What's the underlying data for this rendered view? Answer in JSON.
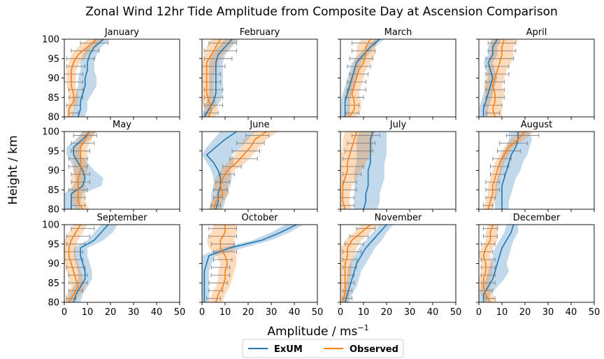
{
  "figure": {
    "title": "Zonal Wind 12hr Tide Amplitude from Composite Day at Ascension Comparison",
    "ylabel": "Height / km",
    "xlabel_main": "Amplitude / ms",
    "xlabel_exp": "−1",
    "legend": {
      "placement": "bottom-center",
      "entries": [
        "ExUM",
        "Observed"
      ]
    },
    "colors": {
      "exum": "#1f77b4",
      "observed": "#ff7f0e",
      "errorbar": "#808080"
    }
  },
  "chart_data": {
    "type": "line",
    "xlim": [
      0,
      50
    ],
    "ylim": [
      80,
      100
    ],
    "x_ticks": [
      0,
      10,
      20,
      30,
      40,
      50
    ],
    "y_ticks": [
      80,
      85,
      90,
      95,
      100
    ],
    "y": [
      80,
      82,
      84,
      86,
      88,
      90,
      92,
      94,
      96,
      98,
      100
    ],
    "panels": [
      {
        "title": "January",
        "exum": [
          6,
          7,
          7,
          8,
          9,
          9,
          10,
          10,
          11,
          13,
          17
        ],
        "exum_lo": [
          3,
          4,
          4,
          5,
          6,
          6,
          7,
          7,
          8,
          10,
          14
        ],
        "exum_hi": [
          9,
          10,
          10,
          12,
          14,
          14,
          13,
          13,
          14,
          16,
          20
        ],
        "obs": [
          2,
          2,
          4,
          4,
          3,
          3,
          3,
          4,
          6,
          10,
          14
        ],
        "obs_lo": [
          1,
          1,
          2,
          2,
          1,
          1,
          1,
          2,
          3,
          6,
          10
        ],
        "obs_hi": [
          4,
          4,
          6,
          6,
          5,
          5,
          5,
          7,
          10,
          14,
          17
        ],
        "err_y": [
          81,
          83,
          85,
          87,
          89,
          91,
          93,
          95,
          97,
          99
        ],
        "err_c": [
          4,
          4,
          5,
          5,
          4,
          4,
          5,
          7,
          9,
          13
        ],
        "err_h": [
          2,
          3,
          3,
          3,
          4,
          4,
          4,
          6,
          6,
          6
        ]
      },
      {
        "title": "February",
        "exum": [
          1,
          3,
          5,
          6,
          6,
          6,
          6,
          6,
          7,
          10,
          13
        ],
        "exum_lo": [
          0,
          1,
          2,
          3,
          3,
          3,
          3,
          3,
          4,
          7,
          10
        ],
        "exum_hi": [
          3,
          5,
          8,
          9,
          9,
          9,
          9,
          9,
          10,
          13,
          16
        ],
        "obs": [
          3,
          4,
          3,
          2,
          2,
          2,
          2,
          2,
          4,
          6,
          8
        ],
        "obs_lo": [
          1,
          1,
          0,
          0,
          0,
          0,
          0,
          0,
          1,
          2,
          4
        ],
        "obs_hi": [
          6,
          7,
          6,
          5,
          5,
          5,
          6,
          7,
          9,
          12,
          15
        ],
        "err_y": [
          81,
          83,
          85,
          87,
          89,
          91,
          93,
          95,
          97,
          99
        ],
        "err_c": [
          4,
          5,
          5,
          5,
          4,
          4,
          5,
          7,
          8,
          9
        ],
        "err_h": [
          3,
          4,
          4,
          4,
          4,
          4,
          5,
          6,
          7,
          6
        ]
      },
      {
        "title": "March",
        "exum": [
          2,
          2,
          2,
          3,
          4,
          5,
          6,
          7,
          10,
          13,
          17
        ],
        "exum_lo": [
          0,
          0,
          0,
          1,
          2,
          3,
          4,
          5,
          8,
          11,
          15
        ],
        "exum_hi": [
          4,
          4,
          4,
          5,
          6,
          7,
          8,
          9,
          12,
          15,
          19
        ],
        "obs": [
          4,
          6,
          6,
          5,
          6,
          7,
          8,
          10,
          11,
          11,
          13
        ],
        "obs_lo": [
          1,
          3,
          3,
          2,
          3,
          4,
          5,
          6,
          7,
          7,
          9
        ],
        "obs_hi": [
          7,
          9,
          9,
          8,
          9,
          10,
          11,
          13,
          15,
          15,
          17
        ],
        "err_y": [
          81,
          83,
          85,
          87,
          89,
          91,
          93,
          95,
          97,
          99
        ],
        "err_c": [
          5,
          5,
          6,
          7,
          7,
          8,
          8,
          9,
          10,
          10
        ],
        "err_h": [
          3,
          3,
          4,
          4,
          4,
          4,
          5,
          5,
          5,
          5
        ]
      },
      {
        "title": "April",
        "exum": [
          2,
          2,
          3,
          4,
          5,
          6,
          5,
          4,
          6,
          6,
          8
        ],
        "exum_lo": [
          0,
          0,
          1,
          2,
          3,
          4,
          3,
          2,
          4,
          4,
          6
        ],
        "exum_hi": [
          4,
          4,
          5,
          6,
          7,
          8,
          7,
          6,
          8,
          8,
          10
        ],
        "obs": [
          7,
          6,
          7,
          7,
          6,
          7,
          8,
          9,
          10,
          10,
          11
        ],
        "obs_lo": [
          3,
          3,
          3,
          3,
          2,
          3,
          4,
          4,
          5,
          5,
          5
        ],
        "obs_hi": [
          10,
          10,
          10,
          11,
          10,
          11,
          12,
          14,
          15,
          15,
          17
        ],
        "err_y": [
          81,
          83,
          85,
          87,
          89,
          91,
          93,
          95,
          97,
          99
        ],
        "err_c": [
          6,
          6,
          7,
          7,
          7,
          8,
          8,
          9,
          10,
          10
        ],
        "err_h": [
          3,
          4,
          4,
          4,
          4,
          5,
          5,
          6,
          6,
          6
        ]
      },
      {
        "title": "May",
        "exum": [
          3,
          3,
          3,
          8,
          9,
          8,
          6,
          4,
          4,
          8,
          11
        ],
        "exum_lo": [
          0,
          0,
          0,
          4,
          5,
          4,
          3,
          1,
          1,
          5,
          8
        ],
        "exum_hi": [
          7,
          7,
          8,
          16,
          17,
          13,
          10,
          7,
          7,
          11,
          14
        ],
        "obs": [
          8,
          6,
          6,
          6,
          6,
          7,
          7,
          7,
          7,
          9,
          11
        ],
        "obs_lo": [
          5,
          3,
          3,
          3,
          3,
          4,
          4,
          4,
          4,
          6,
          8
        ],
        "obs_hi": [
          11,
          9,
          9,
          9,
          9,
          10,
          10,
          10,
          10,
          12,
          14
        ],
        "err_y": [
          81,
          83,
          85,
          87,
          89,
          91,
          93,
          95,
          97,
          99
        ],
        "err_c": [
          6,
          6,
          6,
          7,
          7,
          6,
          6,
          7,
          8,
          9
        ],
        "err_h": [
          3,
          3,
          4,
          4,
          4,
          4,
          4,
          4,
          5,
          5
        ]
      },
      {
        "title": "June",
        "exum": [
          6,
          7,
          7,
          8,
          8,
          7,
          5,
          2,
          6,
          10,
          15
        ],
        "exum_lo": [
          3,
          4,
          4,
          5,
          5,
          4,
          2,
          0,
          2,
          5,
          8
        ],
        "exum_hi": [
          9,
          10,
          11,
          12,
          13,
          12,
          14,
          13,
          17,
          20,
          23
        ],
        "obs": [
          5,
          6,
          9,
          8,
          9,
          11,
          15,
          18,
          21,
          23,
          28
        ],
        "obs_lo": [
          3,
          4,
          6,
          5,
          6,
          8,
          11,
          14,
          17,
          18,
          23
        ],
        "obs_hi": [
          8,
          9,
          12,
          11,
          12,
          14,
          19,
          22,
          25,
          28,
          33
        ],
        "err_y": [
          81,
          83,
          85,
          87,
          89,
          91,
          93,
          95,
          97,
          99
        ],
        "err_c": [
          6,
          7,
          8,
          9,
          11,
          13,
          18,
          19,
          21,
          24
        ],
        "err_h": [
          2,
          2,
          3,
          3,
          3,
          4,
          6,
          6,
          6,
          5
        ]
      },
      {
        "title": "July",
        "exum": [
          10,
          11,
          11,
          12,
          12,
          12,
          13,
          13,
          13,
          13,
          14
        ],
        "exum_lo": [
          6,
          6,
          6,
          6,
          6,
          6,
          7,
          7,
          7,
          7,
          8
        ],
        "exum_hi": [
          16,
          17,
          17,
          18,
          19,
          19,
          19,
          20,
          20,
          20,
          20
        ],
        "obs": [
          2,
          1,
          1,
          1,
          2,
          3,
          3,
          4,
          5,
          6,
          7
        ],
        "obs_lo": [
          0,
          0,
          0,
          0,
          0,
          0,
          0,
          0,
          1,
          1,
          2
        ],
        "obs_hi": [
          5,
          4,
          4,
          5,
          7,
          9,
          11,
          13,
          14,
          14,
          15
        ],
        "err_y": [
          81,
          83,
          85,
          87,
          89,
          91,
          93,
          95,
          97,
          99
        ],
        "err_c": [
          3,
          3,
          4,
          4,
          5,
          5,
          7,
          8,
          9,
          11
        ],
        "err_h": [
          3,
          3,
          3,
          3,
          4,
          5,
          6,
          6,
          6,
          6
        ]
      },
      {
        "title": "August",
        "exum": [
          10,
          10,
          10,
          10,
          11,
          12,
          13,
          14,
          16,
          17,
          17
        ],
        "exum_lo": [
          7,
          7,
          7,
          7,
          8,
          9,
          9,
          10,
          12,
          13,
          13
        ],
        "exum_hi": [
          13,
          13,
          14,
          15,
          16,
          18,
          19,
          21,
          22,
          23,
          22
        ],
        "obs": [
          4,
          5,
          6,
          6,
          7,
          8,
          9,
          11,
          13,
          17,
          20
        ],
        "obs_lo": [
          2,
          3,
          4,
          4,
          5,
          6,
          7,
          9,
          11,
          14,
          17
        ],
        "obs_hi": [
          6,
          7,
          8,
          8,
          9,
          10,
          11,
          13,
          15,
          20,
          24
        ],
        "err_y": [
          81,
          83,
          85,
          87,
          89,
          91,
          93,
          95,
          97,
          99
        ],
        "err_c": [
          4,
          5,
          6,
          6,
          8,
          9,
          10,
          13,
          15,
          19
        ],
        "err_h": [
          2,
          2,
          3,
          3,
          3,
          4,
          4,
          5,
          6,
          7
        ]
      },
      {
        "title": "September",
        "exum": [
          4,
          5,
          7,
          9,
          9,
          8,
          7,
          7,
          13,
          16,
          19
        ],
        "exum_lo": [
          1,
          2,
          4,
          6,
          6,
          5,
          4,
          4,
          10,
          13,
          16
        ],
        "exum_hi": [
          7,
          8,
          10,
          12,
          12,
          11,
          10,
          10,
          17,
          21,
          23
        ],
        "obs": [
          2,
          4,
          6,
          5,
          4,
          3,
          2,
          2,
          3,
          5,
          7
        ],
        "obs_lo": [
          0,
          1,
          3,
          2,
          1,
          0,
          0,
          0,
          0,
          2,
          4
        ],
        "obs_hi": [
          4,
          7,
          9,
          8,
          7,
          6,
          5,
          5,
          6,
          8,
          10
        ],
        "err_y": [
          81,
          83,
          85,
          87,
          89,
          91,
          93,
          95,
          97,
          99
        ],
        "err_c": [
          3,
          5,
          6,
          6,
          5,
          4,
          4,
          5,
          6,
          8
        ],
        "err_h": [
          2,
          3,
          4,
          4,
          4,
          4,
          4,
          4,
          5,
          5
        ]
      },
      {
        "title": "October",
        "exum": [
          1,
          1,
          1,
          1,
          1,
          2,
          3,
          12,
          26,
          34,
          41
        ],
        "exum_lo": [
          0,
          0,
          0,
          0,
          0,
          0,
          0,
          8,
          22,
          30,
          36
        ],
        "exum_hi": [
          3,
          3,
          3,
          3,
          3,
          4,
          6,
          18,
          30,
          38,
          44
        ],
        "obs": [
          6,
          7,
          9,
          10,
          10,
          11,
          10,
          8,
          8,
          10,
          10
        ],
        "obs_lo": [
          3,
          4,
          6,
          7,
          7,
          8,
          6,
          3,
          2,
          4,
          5
        ],
        "obs_hi": [
          9,
          10,
          12,
          13,
          14,
          15,
          15,
          14,
          14,
          15,
          15
        ],
        "err_y": [
          81,
          83,
          85,
          87,
          89,
          91,
          93,
          95,
          97,
          99
        ],
        "err_c": [
          5,
          6,
          7,
          8,
          8,
          9,
          10,
          9,
          9,
          9
        ],
        "err_h": [
          3,
          3,
          4,
          4,
          4,
          4,
          5,
          5,
          6,
          6
        ]
      },
      {
        "title": "November",
        "exum": [
          2,
          3,
          4,
          5,
          6,
          7,
          9,
          11,
          14,
          17,
          20
        ],
        "exum_lo": [
          0,
          1,
          2,
          3,
          3,
          4,
          6,
          8,
          11,
          14,
          17
        ],
        "exum_hi": [
          4,
          5,
          7,
          8,
          9,
          11,
          13,
          15,
          18,
          20,
          23
        ],
        "obs": [
          1,
          2,
          2,
          2,
          2,
          2,
          3,
          3,
          5,
          9,
          13
        ],
        "obs_lo": [
          0,
          0,
          0,
          0,
          0,
          0,
          0,
          0,
          2,
          6,
          9
        ],
        "obs_hi": [
          3,
          4,
          4,
          4,
          5,
          5,
          6,
          7,
          9,
          13,
          17
        ],
        "err_y": [
          81,
          83,
          85,
          87,
          89,
          91,
          93,
          95,
          97,
          99
        ],
        "err_c": [
          3,
          3,
          3,
          3,
          4,
          4,
          5,
          6,
          8,
          11
        ],
        "err_h": [
          2,
          2,
          3,
          3,
          3,
          3,
          4,
          4,
          4,
          4
        ]
      },
      {
        "title": "December",
        "exum": [
          2,
          2,
          4,
          6,
          7,
          8,
          9,
          10,
          12,
          14,
          15
        ],
        "exum_lo": [
          0,
          0,
          1,
          3,
          4,
          5,
          6,
          7,
          9,
          11,
          12
        ],
        "exum_hi": [
          4,
          5,
          8,
          11,
          13,
          12,
          13,
          14,
          15,
          17,
          17
        ],
        "obs": [
          5,
          3,
          2,
          2,
          3,
          3,
          2,
          3,
          5,
          5,
          6
        ],
        "obs_lo": [
          3,
          1,
          0,
          0,
          1,
          1,
          0,
          1,
          3,
          3,
          4
        ],
        "obs_hi": [
          8,
          6,
          5,
          5,
          6,
          6,
          5,
          6,
          8,
          8,
          9
        ],
        "err_y": [
          81,
          83,
          85,
          87,
          89,
          91,
          93,
          95,
          97,
          99
        ],
        "err_c": [
          5,
          3,
          4,
          4,
          4,
          4,
          3,
          4,
          5,
          5
        ],
        "err_h": [
          2,
          3,
          3,
          3,
          3,
          3,
          3,
          3,
          3,
          3
        ]
      }
    ]
  }
}
